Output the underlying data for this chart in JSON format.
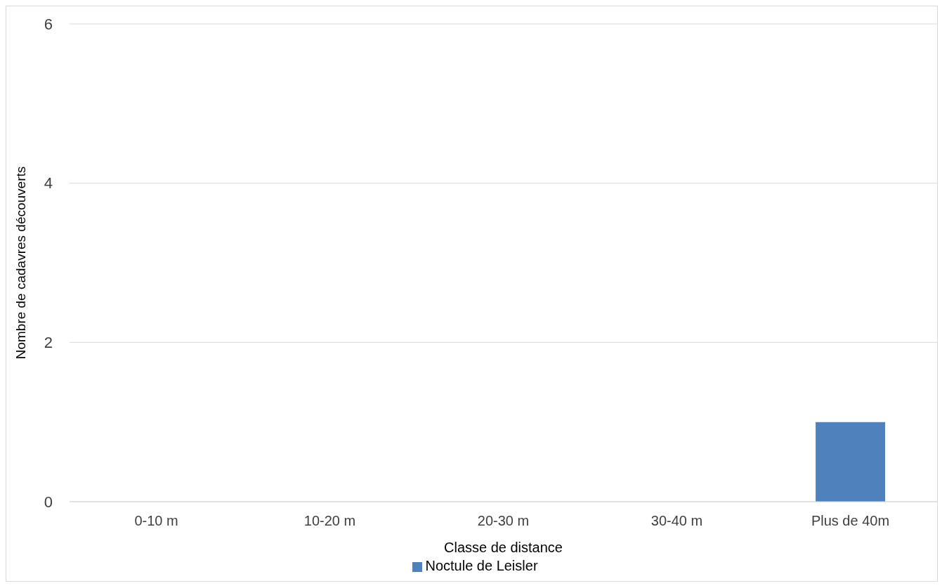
{
  "chart_data": {
    "type": "bar",
    "xlabel": "Classe de distance",
    "ylabel": "Nombre de cadavres découverts",
    "categories": [
      "0-10 m",
      "10-20 m",
      "20-30 m",
      "30-40 m",
      "Plus de 40m"
    ],
    "series": [
      {
        "name": "Noctule de Leisler",
        "color": "#4f81bd",
        "values": [
          0,
          0,
          0,
          0,
          1
        ]
      }
    ],
    "ylim": [
      0,
      6
    ],
    "yticks": [
      0,
      2,
      4,
      6
    ],
    "grid": "y",
    "legend": "bottom"
  }
}
